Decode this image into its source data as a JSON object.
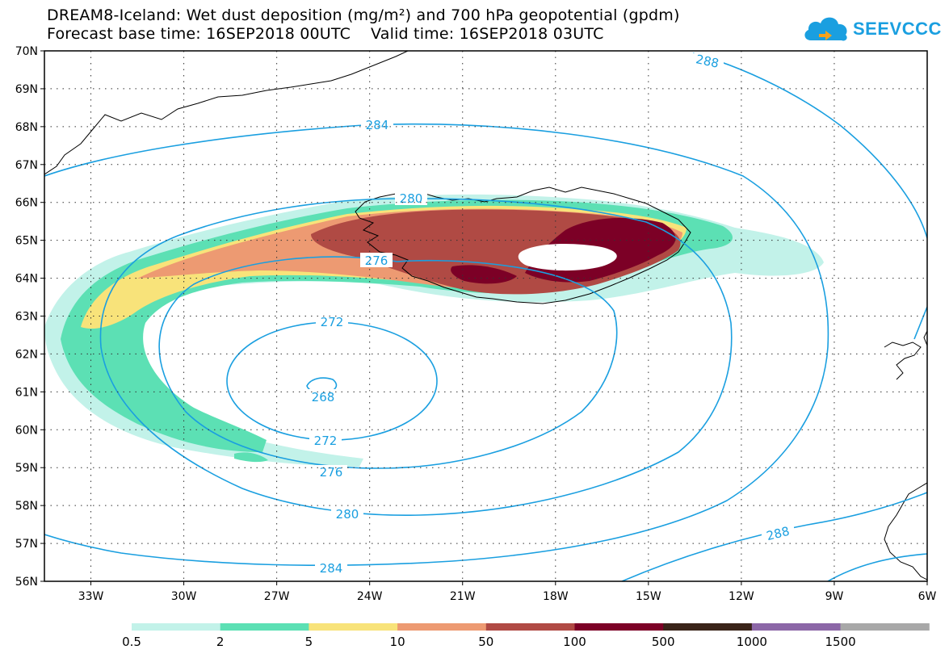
{
  "header": {
    "title_line1": "DREAM8-Iceland: Wet dust deposition (mg/m²) and 700 hPa geopotential (gpdm)",
    "title_line2": "Forecast base time: 16SEP2018 00UTC    Valid time: 16SEP2018 03UTC"
  },
  "logo": {
    "text": "SEEVCCC",
    "icon": "cloud-icon",
    "color": "#1a9fe0"
  },
  "map": {
    "lat_labels": [
      "70N",
      "69N",
      "68N",
      "67N",
      "66N",
      "65N",
      "64N",
      "63N",
      "62N",
      "61N",
      "60N",
      "59N",
      "58N",
      "57N",
      "56N"
    ],
    "lon_labels": [
      "33W",
      "30W",
      "27W",
      "24W",
      "21W",
      "18W",
      "15W",
      "12W",
      "9W",
      "6W"
    ],
    "contour_color": "#1a9fe0",
    "contours": [
      {
        "value": 268,
        "label": "268"
      },
      {
        "value": 272,
        "label": "272"
      },
      {
        "value": 276,
        "label": "276"
      },
      {
        "value": 280,
        "label": "280"
      },
      {
        "value": 284,
        "label": "284"
      },
      {
        "value": 288,
        "label": "288"
      }
    ]
  },
  "legend": {
    "colors": [
      "#c2f2e9",
      "#5ce0b4",
      "#f8e37a",
      "#ed9a72",
      "#b04a44",
      "#7c0026",
      "#3a2319",
      "#8c67a7",
      "#a8a8a8"
    ],
    "labels": [
      "0.5",
      "2",
      "5",
      "10",
      "50",
      "100",
      "500",
      "1000",
      "1500"
    ]
  }
}
